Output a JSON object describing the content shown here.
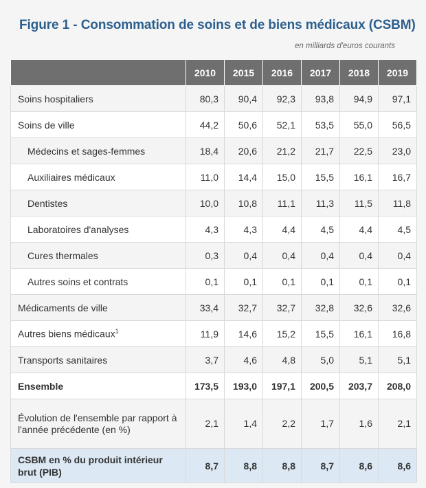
{
  "title": "Figure 1 - Consommation de soins et de biens médicaux (CSBM)",
  "unit_note": "en milliards d'euros courants",
  "table": {
    "columns": [
      "2010",
      "2015",
      "2016",
      "2017",
      "2018",
      "2019"
    ],
    "rows": [
      {
        "label": "Soins hospitaliers",
        "values": [
          "80,3",
          "90,4",
          "92,3",
          "93,8",
          "94,9",
          "97,1"
        ]
      },
      {
        "label": "Soins de ville",
        "values": [
          "44,2",
          "50,6",
          "52,1",
          "53,5",
          "55,0",
          "56,5"
        ]
      },
      {
        "label": "Médecins et sages-femmes",
        "values": [
          "18,4",
          "20,6",
          "21,2",
          "21,7",
          "22,5",
          "23,0"
        ]
      },
      {
        "label": "Auxiliaires médicaux",
        "values": [
          "11,0",
          "14,4",
          "15,0",
          "15,5",
          "16,1",
          "16,7"
        ]
      },
      {
        "label": "Dentistes",
        "values": [
          "10,0",
          "10,8",
          "11,1",
          "11,3",
          "11,5",
          "11,8"
        ]
      },
      {
        "label": "Laboratoires d'analyses",
        "values": [
          "4,3",
          "4,3",
          "4,4",
          "4,5",
          "4,4",
          "4,5"
        ]
      },
      {
        "label": "Cures thermales",
        "values": [
          "0,3",
          "0,4",
          "0,4",
          "0,4",
          "0,4",
          "0,4"
        ]
      },
      {
        "label": "Autres soins et contrats",
        "values": [
          "0,1",
          "0,1",
          "0,1",
          "0,1",
          "0,1",
          "0,1"
        ]
      },
      {
        "label": "Médicaments de ville",
        "values": [
          "33,4",
          "32,7",
          "32,7",
          "32,8",
          "32,6",
          "32,6"
        ]
      },
      {
        "label": "Autres biens médicaux",
        "footnote": "1",
        "values": [
          "11,9",
          "14,6",
          "15,2",
          "15,5",
          "16,1",
          "16,8"
        ]
      },
      {
        "label": "Transports sanitaires",
        "values": [
          "3,7",
          "4,6",
          "4,8",
          "5,0",
          "5,1",
          "5,1"
        ]
      },
      {
        "label": "Ensemble",
        "values": [
          "173,5",
          "193,0",
          "197,1",
          "200,5",
          "203,7",
          "208,0"
        ]
      },
      {
        "label": "Évolution de l'ensemble par rapport à l'année précédente (en %)",
        "values": [
          "2,1",
          "1,4",
          "2,2",
          "1,7",
          "1,6",
          "2,1"
        ]
      },
      {
        "label": "CSBM en % du produit intérieur brut (PIB)",
        "values": [
          "8,7",
          "8,8",
          "8,8",
          "8,7",
          "8,6",
          "8,6"
        ]
      }
    ]
  }
}
